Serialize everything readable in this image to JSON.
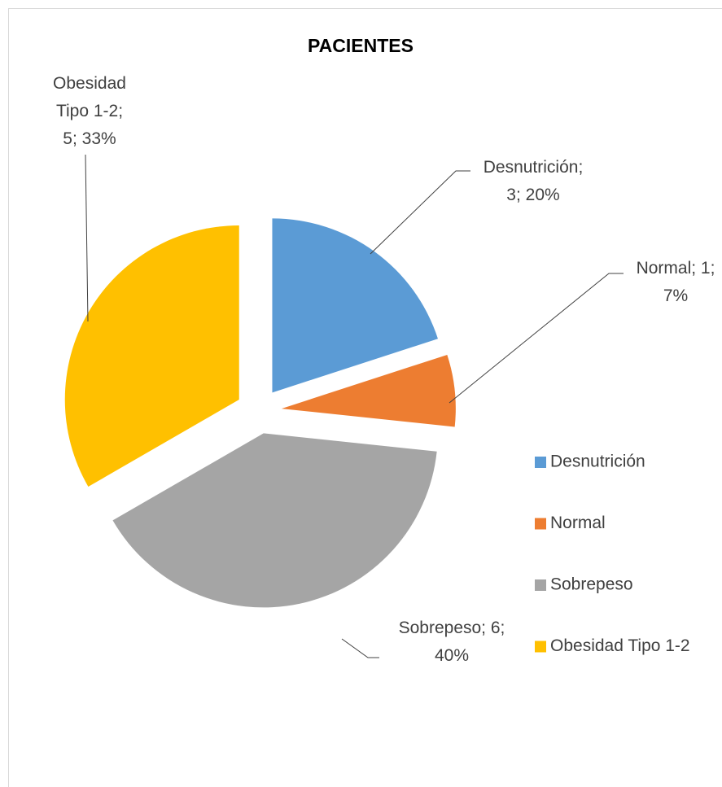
{
  "chart_data": {
    "type": "pie",
    "title": "PACIENTES",
    "categories": [
      "Desnutrición",
      "Normal",
      "Sobrepeso",
      "Obesidad Tipo 1-2"
    ],
    "values": [
      3,
      1,
      6,
      5
    ],
    "value_labels": [
      "Desnutrición; 3; 20%",
      "Normal; 1; 7%",
      "Sobrepeso; 6; 40%",
      "Obesidad Tipo 1-2; 5; 33%"
    ],
    "colors": [
      "#5b9bd5",
      "#ed7d31",
      "#a5a5a5",
      "#ffc000"
    ],
    "legend": "right"
  }
}
